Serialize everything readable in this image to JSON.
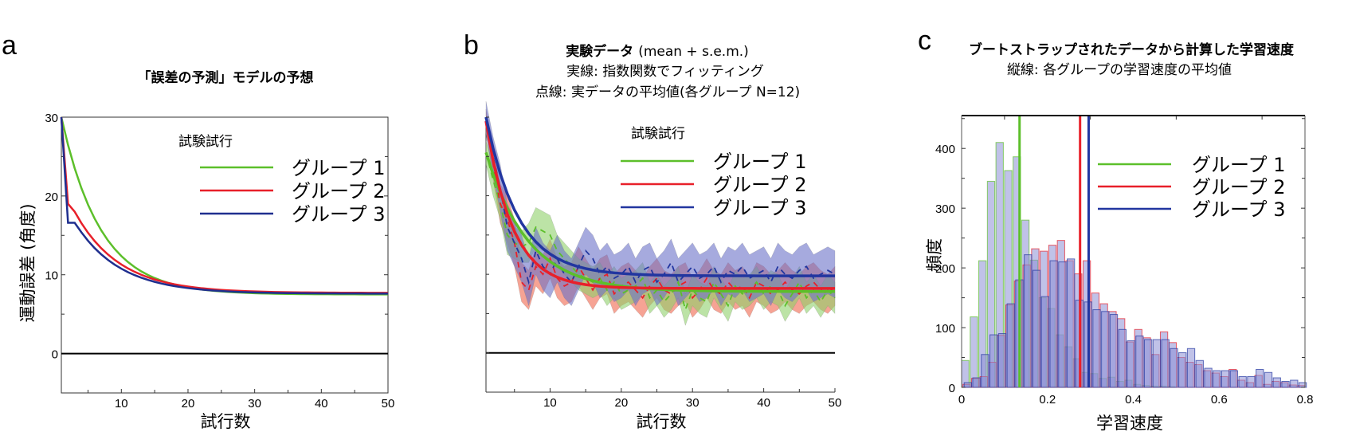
{
  "chart_data": [
    {
      "panel_label": "a",
      "type": "line",
      "title": "「誤差の予測」モデルの予想",
      "xlabel": "試行数",
      "ylabel": "運動誤差 (角度)",
      "xlim": [
        1,
        50
      ],
      "ylim": [
        -5,
        30
      ],
      "xticks": [
        10,
        20,
        30,
        40,
        50
      ],
      "yticks": [
        0,
        10,
        20,
        30
      ],
      "grid": false,
      "legend_title": "試験試行",
      "legend_position": "top-right",
      "reference_line_y": 0,
      "series": [
        {
          "name": "グループ 1",
          "color": "#5cbf2a",
          "model": "exponential",
          "start": 30,
          "asymptote": 7.5,
          "rate": 0.17
        },
        {
          "name": "グループ 2",
          "color": "#e8202a",
          "points": [
            [
              1,
              30
            ],
            [
              2,
              19
            ],
            [
              3,
              18
            ]
          ],
          "model": "exponential",
          "asymptote": 7.7,
          "rate": 0.15
        },
        {
          "name": "グループ 3",
          "color": "#1f2f8f",
          "points": [
            [
              1,
              30
            ],
            [
              2,
              16.6
            ],
            [
              3,
              16.6
            ],
            [
              4,
              15.4
            ]
          ],
          "model": "exponential",
          "asymptote": 7.6,
          "rate": 0.15
        }
      ]
    },
    {
      "panel_label": "b",
      "type": "line",
      "title": "実験データ",
      "title_suffix": "(mean + s.e.m.)",
      "subtitle1": "実線: 指数関数でフィッティング",
      "subtitle2": "点線: 実データの平均値(各グループ N=12)",
      "xlabel": "試行数",
      "xlim": [
        1,
        50
      ],
      "ylim": [
        -5,
        30
      ],
      "xticks": [
        10,
        20,
        30,
        40,
        50
      ],
      "grid": false,
      "legend_title": "試験試行",
      "legend_position": "top-right",
      "reference_line_y": 0,
      "series": [
        {
          "name": "グループ 1",
          "color": "#5cbf2a",
          "band_color": "#8fd16a",
          "fit": {
            "start": 25.5,
            "asymptote": 7.8,
            "rate": 0.17
          },
          "mean": [
            25.5,
            22,
            19,
            15,
            14,
            13.5,
            14,
            16,
            15.5,
            15,
            13,
            12,
            11,
            10,
            9.5,
            9,
            9.5,
            8,
            9,
            7.5,
            8,
            8.5,
            9.5,
            7,
            8,
            6.5,
            7.5,
            9,
            5.5,
            8,
            7,
            6.5,
            9,
            7.5,
            6,
            8.5,
            7.5,
            8,
            9,
            7.5,
            8.5,
            8,
            6,
            7.5,
            9,
            7,
            8,
            6.5,
            8,
            7
          ],
          "sem": [
            1.5,
            2,
            2,
            2.5,
            2,
            2,
            2.5,
            2.5,
            2.5,
            2.5,
            2,
            2,
            2,
            2,
            2,
            2,
            2,
            2,
            2,
            2,
            2,
            2,
            2,
            2,
            2,
            2,
            2,
            2,
            2,
            2,
            2,
            2,
            2,
            2,
            2,
            2,
            2,
            2,
            2,
            2,
            2,
            2,
            2,
            2,
            2,
            2,
            2,
            2,
            2,
            2
          ]
        },
        {
          "name": "グループ 2",
          "color": "#e8202a",
          "band_color": "#f0654d",
          "fit": {
            "start": 29.5,
            "asymptote": 8.2,
            "rate": 0.27
          },
          "mean": [
            29.5,
            24,
            19,
            17,
            14,
            9,
            8,
            11,
            10,
            12,
            9.5,
            8.5,
            9,
            11,
            9.5,
            8,
            9.5,
            10,
            7.5,
            8.5,
            9,
            8,
            7,
            8.5,
            9.5,
            8,
            7.5,
            8.5,
            9,
            7,
            8,
            9.5,
            8,
            7.5,
            9,
            8,
            8.5,
            7,
            9,
            8.5,
            7.5,
            8,
            9,
            8,
            7.5,
            8.5,
            9,
            8,
            7.5,
            8.5
          ],
          "sem": [
            1.5,
            2,
            2.5,
            3,
            3,
            2.5,
            2.5,
            2.5,
            2.5,
            2.5,
            2.5,
            2.5,
            2.5,
            2.5,
            2.5,
            2.5,
            2.5,
            2.5,
            2.5,
            2.5,
            2.5,
            2.5,
            2.5,
            2.5,
            2.5,
            2.5,
            2.5,
            2.5,
            2.5,
            2.5,
            2.5,
            2.5,
            2.5,
            2.5,
            2.5,
            2.5,
            2.5,
            2.5,
            2.5,
            2.5,
            2.5,
            2.5,
            2.5,
            2.5,
            2.5,
            2.5,
            2.5,
            2.5,
            2.5,
            2.5
          ]
        },
        {
          "name": "グループ 3",
          "color": "#2236a0",
          "band_color": "#6b72c8",
          "fit": {
            "start": 30,
            "asymptote": 9.8,
            "rate": 0.22
          },
          "mean": [
            30,
            25,
            21,
            16,
            14,
            12,
            9,
            13,
            11,
            10,
            12,
            10,
            9,
            11,
            13,
            12,
            10,
            11,
            9.5,
            10,
            11,
            9,
            10.5,
            11,
            9,
            10,
            11.5,
            9,
            10,
            11,
            9.5,
            10,
            11,
            9,
            10.5,
            10,
            11,
            9.5,
            10,
            10.5,
            9,
            11,
            10,
            9.5,
            10.5,
            11,
            9.5,
            10,
            10.5,
            10
          ],
          "sem": [
            2,
            2.5,
            3,
            3,
            3,
            3,
            3,
            3,
            3,
            3,
            3,
            3,
            3,
            3,
            3,
            3,
            3,
            3,
            3,
            3,
            3,
            3,
            3,
            3,
            3,
            3,
            3,
            3,
            3,
            3,
            3,
            3,
            3,
            3,
            3,
            3,
            3,
            3,
            3,
            3,
            3,
            3,
            3,
            3,
            3,
            3,
            3,
            3,
            3,
            3
          ]
        }
      ]
    },
    {
      "panel_label": "c",
      "type": "bar",
      "subtype": "histogram",
      "title": "ブートストラップされたデータから計算した学習速度",
      "subtitle": "縦線: 各グループの学習速度の平均値",
      "xlabel": "学習速度",
      "ylabel": "頻度",
      "xlim": [
        0,
        0.8
      ],
      "ylim": [
        0,
        455
      ],
      "xticks": [
        0,
        0.2,
        0.4,
        0.6,
        0.8
      ],
      "yticks": [
        0,
        100,
        200,
        300,
        400
      ],
      "bin_width": 0.02,
      "grid": false,
      "legend_position": "top-right",
      "series": [
        {
          "name": "グループ 1",
          "color": "#5cbf2a",
          "mean_line": 0.135,
          "counts": [
            45,
            118,
            212,
            345,
            410,
            363,
            386,
            280,
            213,
            150,
            132,
            88,
            68,
            48,
            25,
            23,
            15,
            17,
            10,
            12,
            5,
            3,
            2,
            2,
            1,
            0,
            0,
            0,
            0,
            0,
            0,
            0,
            0,
            0,
            0,
            0,
            0,
            0,
            0,
            0
          ]
        },
        {
          "name": "グループ 2",
          "color": "#e8202a",
          "mean_line": 0.276,
          "counts": [
            5,
            15,
            18,
            42,
            87,
            138,
            178,
            205,
            232,
            228,
            238,
            246,
            212,
            190,
            212,
            158,
            140,
            127,
            115,
            76,
            97,
            83,
            55,
            93,
            75,
            50,
            42,
            38,
            28,
            24,
            18,
            30,
            12,
            8,
            20,
            5,
            10,
            8,
            4,
            3
          ]
        },
        {
          "name": "グループ 3",
          "color": "#2236a0",
          "mean_line": 0.296,
          "counts": [
            8,
            16,
            55,
            88,
            90,
            140,
            180,
            222,
            196,
            152,
            212,
            210,
            215,
            146,
            143,
            130,
            127,
            122,
            97,
            78,
            86,
            80,
            80,
            80,
            65,
            58,
            65,
            45,
            32,
            28,
            28,
            28,
            18,
            18,
            30,
            25,
            16,
            10,
            12,
            8
          ]
        }
      ]
    }
  ]
}
